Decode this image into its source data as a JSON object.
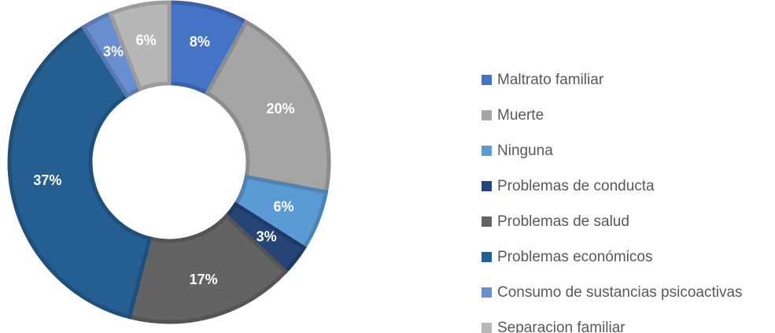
{
  "chart_data": {
    "type": "donut",
    "categories": [
      "Maltrato familiar",
      "Muerte",
      "Ninguna",
      "Problemas de conducta",
      "Problemas de salud",
      "Problemas económicos",
      "Consumo de sustancias psicoactivas",
      "Separacion familiar"
    ],
    "values": [
      8,
      20,
      6,
      3,
      17,
      37,
      3,
      6
    ],
    "value_labels": [
      "8%",
      "20%",
      "6%",
      "3%",
      "17%",
      "37%",
      "3%",
      "6%"
    ],
    "colors": [
      "#4472c4",
      "#a5a5a5",
      "#5b9bd5",
      "#264478",
      "#636363",
      "#255e91",
      "#698ed0",
      "#b7b7b7"
    ],
    "legend": "right"
  }
}
